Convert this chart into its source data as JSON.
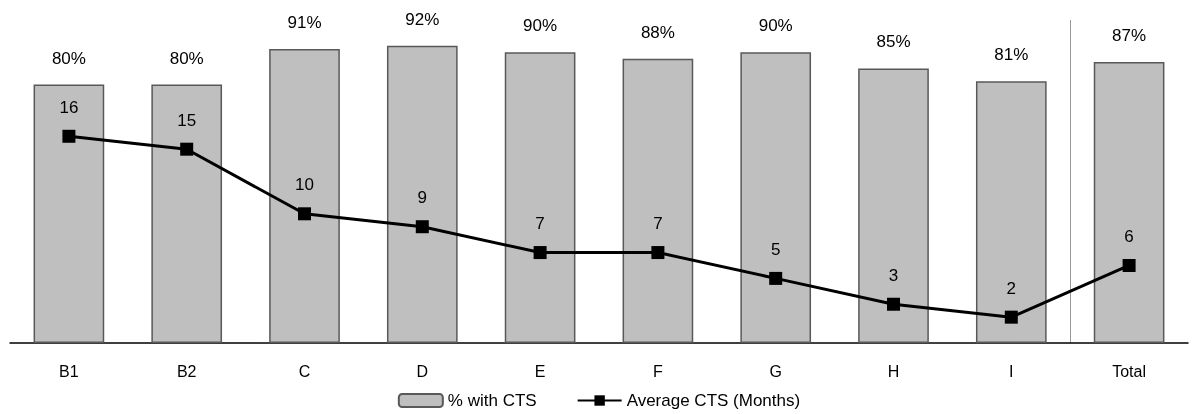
{
  "chart_data": {
    "type": "bar",
    "categories": [
      "B1",
      "B2",
      "C",
      "D",
      "E",
      "F",
      "G",
      "H",
      "I",
      "Total"
    ],
    "series": [
      {
        "name": "% with CTS",
        "color": "#bfbfbf",
        "values": [
          80,
          80,
          91,
          92,
          90,
          88,
          90,
          85,
          81,
          87
        ],
        "value_labels": [
          "80%",
          "80%",
          "91%",
          "92%",
          "90%",
          "88%",
          "90%",
          "85%",
          "81%",
          "87%"
        ]
      },
      {
        "name": "Average CTS (Months)",
        "type": "line",
        "axis": "y2",
        "color": "#000000",
        "values": [
          16,
          15,
          10,
          9,
          7,
          7,
          5,
          3,
          2,
          6
        ],
        "value_labels": [
          "16",
          "15",
          "10",
          "9",
          "7",
          "7",
          "5",
          "3",
          "2",
          "6"
        ]
      }
    ],
    "ylim": [
      0,
      100
    ],
    "y2lim": [
      0,
      25
    ],
    "tick_labels": "x",
    "legend": "bottom",
    "marker": "square",
    "line_style": "solid"
  }
}
